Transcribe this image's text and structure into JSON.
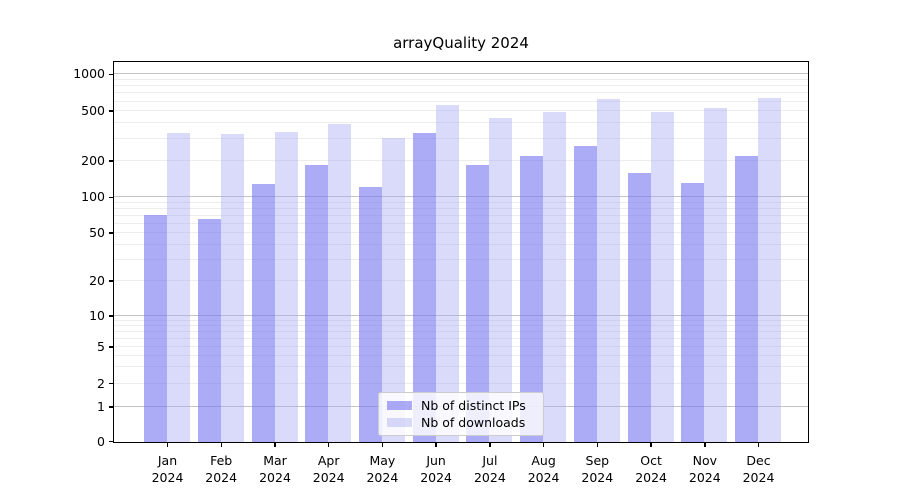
{
  "title": "arrayQuality 2024",
  "chart_data": {
    "type": "bar",
    "title": "arrayQuality 2024",
    "categories": [
      {
        "month": "Jan",
        "year": "2024"
      },
      {
        "month": "Feb",
        "year": "2024"
      },
      {
        "month": "Mar",
        "year": "2024"
      },
      {
        "month": "Apr",
        "year": "2024"
      },
      {
        "month": "May",
        "year": "2024"
      },
      {
        "month": "Jun",
        "year": "2024"
      },
      {
        "month": "Jul",
        "year": "2024"
      },
      {
        "month": "Aug",
        "year": "2024"
      },
      {
        "month": "Sep",
        "year": "2024"
      },
      {
        "month": "Oct",
        "year": "2024"
      },
      {
        "month": "Nov",
        "year": "2024"
      },
      {
        "month": "Dec",
        "year": "2024"
      }
    ],
    "series": [
      {
        "name": "Nb of distinct IPs",
        "color": "#ababf6",
        "fill": "rgba(120,120,240,0.62)",
        "values": [
          72,
          67,
          130,
          186,
          124,
          340,
          185,
          219,
          263,
          159,
          133,
          219
        ]
      },
      {
        "name": "Nb of downloads",
        "color": "#dadafa",
        "fill": "rgba(165,165,242,0.41)",
        "values": [
          340,
          330,
          341,
          400,
          310,
          570,
          448,
          495,
          641,
          495,
          531,
          652
        ]
      }
    ],
    "yticks": [
      0,
      1,
      2,
      5,
      10,
      20,
      50,
      100,
      200,
      500,
      1000
    ],
    "yscale": "log",
    "ylim": [
      0,
      1250
    ],
    "xlabel": "",
    "ylabel": "",
    "grid": true,
    "legend_position": "lower center"
  }
}
